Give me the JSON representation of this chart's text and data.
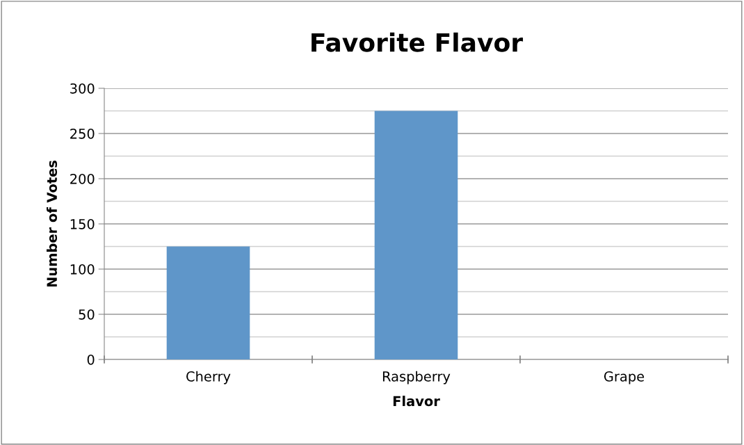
{
  "chart_data": {
    "type": "bar",
    "title": "Favorite Flavor",
    "xlabel": "Flavor",
    "ylabel": "Number of Votes",
    "categories": [
      "Cherry",
      "Raspberry",
      "Grape"
    ],
    "values": [
      125,
      275,
      0
    ],
    "color": "#5f96c9",
    "ylim": [
      0,
      300
    ],
    "yticks": [
      0,
      50,
      100,
      150,
      200,
      250,
      300
    ],
    "grid": "y",
    "legend": false
  }
}
